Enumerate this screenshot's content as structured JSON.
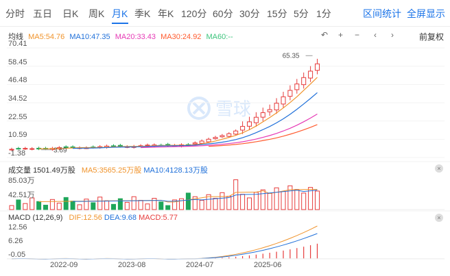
{
  "tabs": [
    {
      "label": "分时",
      "active": false
    },
    {
      "label": "五日",
      "active": false
    },
    {
      "label": "日K",
      "active": false
    },
    {
      "label": "周K",
      "active": false
    },
    {
      "label": "月K",
      "active": true
    },
    {
      "label": "季K",
      "active": false
    },
    {
      "label": "年K",
      "active": false
    },
    {
      "label": "120分",
      "active": false
    },
    {
      "label": "60分",
      "active": false
    },
    {
      "label": "30分",
      "active": false
    },
    {
      "label": "15分",
      "active": false
    },
    {
      "label": "5分",
      "active": false
    },
    {
      "label": "1分",
      "active": false
    }
  ],
  "header_links": {
    "range_stats": "区间统计",
    "fullscreen": "全屏显示"
  },
  "ma_legend": {
    "title": "均线",
    "items": [
      {
        "text": "MA5:54.76",
        "color": "#f0932b"
      },
      {
        "text": "MA10:47.35",
        "color": "#1e6fd9"
      },
      {
        "text": "MA20:33.43",
        "color": "#e639b5"
      },
      {
        "text": "MA30:24.92",
        "color": "#ff5b2e"
      },
      {
        "text": "MA60:--",
        "color": "#3cc47c"
      }
    ]
  },
  "controls": {
    "undo": "↶",
    "zoom_in": "+",
    "zoom_out": "−",
    "prev": "‹",
    "next": "›",
    "adjust": "前复权"
  },
  "price_axis": {
    "labels": [
      "70.41",
      "58.45",
      "46.48",
      "34.52",
      "22.55",
      "10.59",
      "-1.38"
    ],
    "values": [
      70.41,
      58.45,
      46.48,
      34.52,
      22.55,
      10.59,
      -1.38
    ]
  },
  "price_annotations": {
    "high": "65.35",
    "low": "3.69"
  },
  "volume_panel": {
    "title": "成交量",
    "value": "1501.49万股",
    "ma5": "MA5:3565.25万股",
    "ma10": "MA10:4128.13万股",
    "axis": [
      "85.03万",
      "42.51万"
    ],
    "max": 85.03
  },
  "macd_panel": {
    "title": "MACD (12,26,9)",
    "dif": "DIF:12.56",
    "dea": "DEA:9.68",
    "macd": "MACD:5.77",
    "axis": [
      "12.56",
      "6.26",
      "-0.05"
    ],
    "values": [
      12.56,
      6.26,
      -0.05
    ]
  },
  "x_axis": [
    "2022-09",
    "2023-08",
    "2024-07",
    "2025-06"
  ],
  "colors": {
    "up": "#e63a3a",
    "down": "#1ea65a",
    "ma5": "#f0932b",
    "ma10": "#1e6fd9",
    "ma20": "#e639b5",
    "ma30": "#ff5b2e",
    "dif": "#f0932b",
    "dea": "#1e6fd9"
  },
  "watermark": "雪球",
  "close_icon": "×"
}
